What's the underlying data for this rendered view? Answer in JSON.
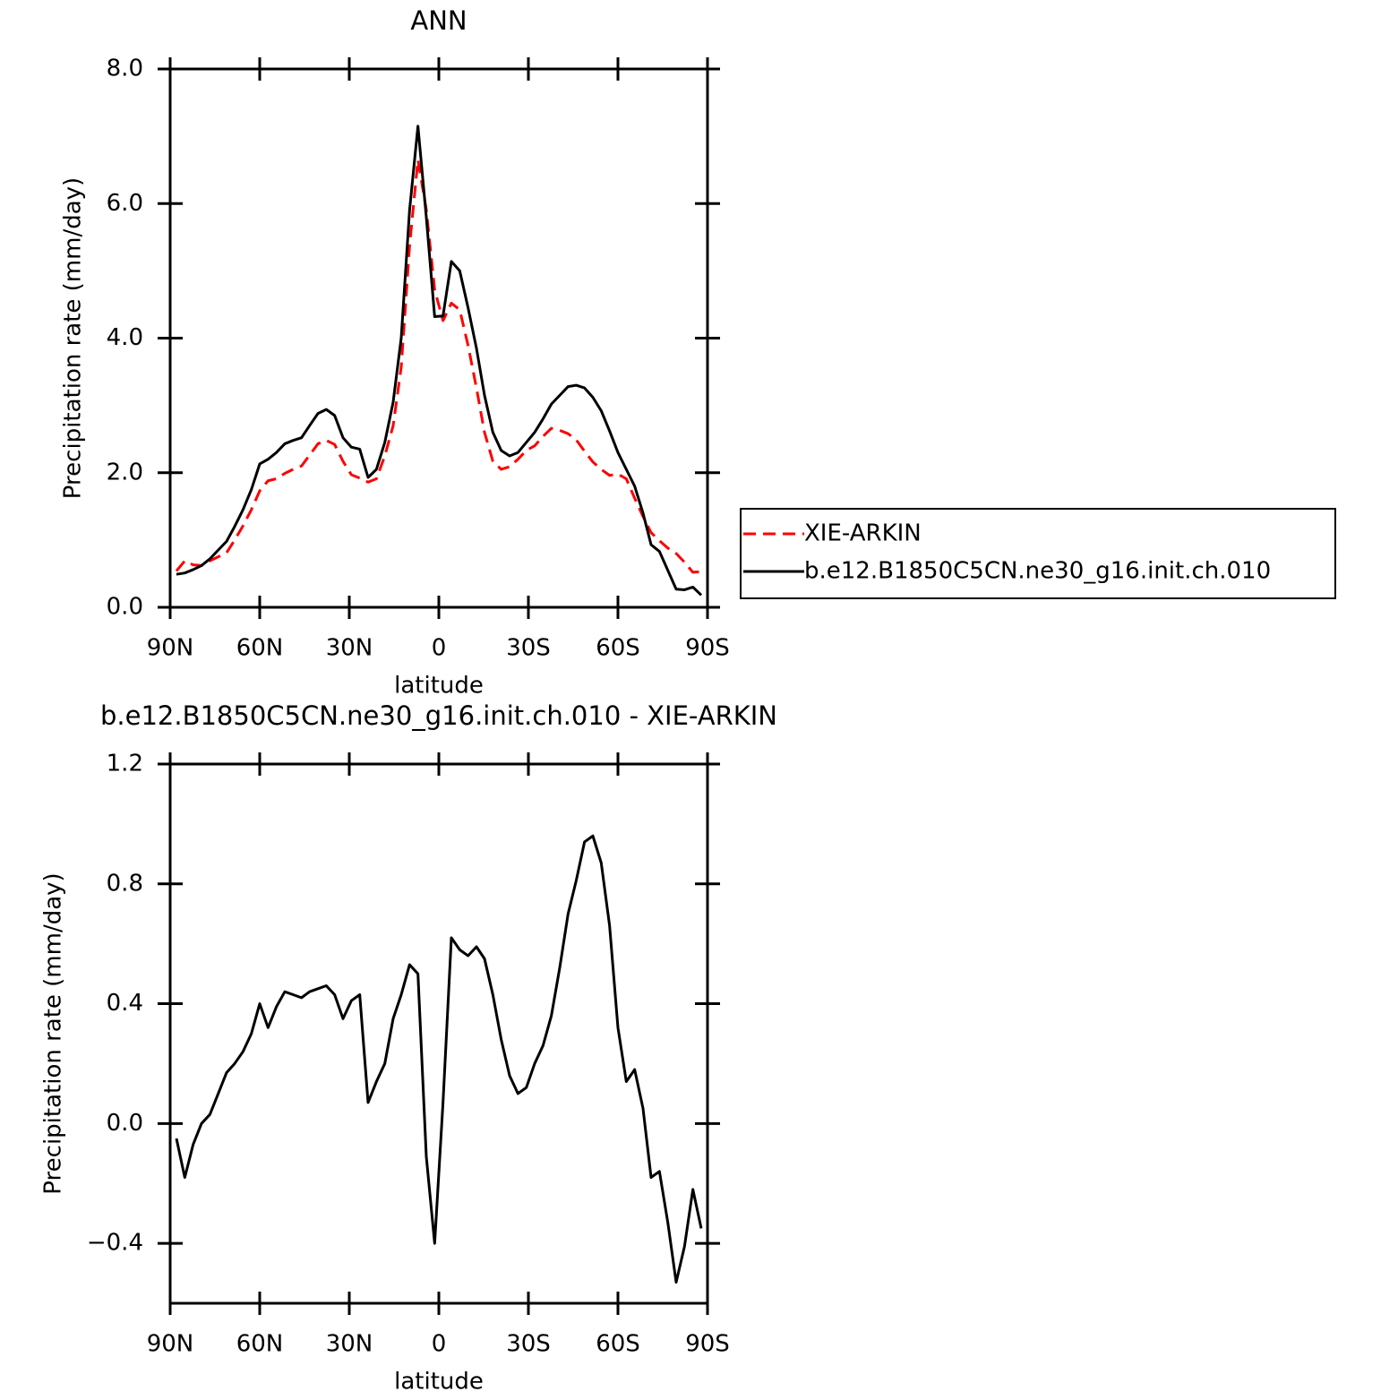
{
  "chart_data": [
    {
      "type": "line",
      "title": "ANN",
      "xlabel": "latitude",
      "ylabel": "Precipitation rate (mm/day)",
      "x": [
        87.9,
        85.1,
        82.3,
        79.5,
        76.7,
        73.9,
        71.1,
        68.4,
        65.6,
        62.8,
        60.0,
        57.2,
        54.4,
        51.6,
        48.8,
        46.0,
        43.3,
        40.5,
        37.7,
        34.9,
        32.1,
        29.3,
        26.5,
        23.7,
        20.9,
        18.1,
        15.3,
        12.6,
        9.8,
        7.0,
        4.2,
        1.4,
        -1.4,
        -4.2,
        -7.0,
        -9.8,
        -12.6,
        -15.3,
        -18.1,
        -20.9,
        -23.7,
        -26.5,
        -29.3,
        -32.1,
        -34.9,
        -37.7,
        -40.5,
        -43.3,
        -46.0,
        -48.8,
        -51.6,
        -54.4,
        -57.2,
        -60.0,
        -62.8,
        -65.6,
        -68.4,
        -71.1,
        -73.9,
        -76.7,
        -79.5,
        -82.3,
        -85.1,
        -87.9
      ],
      "xlim": [
        90,
        -90
      ],
      "xticks": [
        {
          "value": 90,
          "label": "90N"
        },
        {
          "value": 60,
          "label": "60N"
        },
        {
          "value": 30,
          "label": "30N"
        },
        0,
        {
          "value": -30,
          "label": "30S"
        },
        {
          "value": -60,
          "label": "60S"
        },
        {
          "value": -90,
          "label": "90S"
        }
      ],
      "ylim": [
        0,
        8
      ],
      "yticks": [
        {
          "value": 0,
          "label": "0.0"
        },
        {
          "value": 2,
          "label": "2.0"
        },
        {
          "value": 4,
          "label": "4.0"
        },
        {
          "value": 6,
          "label": "6.0"
        },
        {
          "value": 8,
          "label": "8.0"
        }
      ],
      "legend": "right",
      "series": [
        {
          "name": "XIE-ARKIN",
          "color": "#ff0000",
          "linestyle": "dashed",
          "values": [
            0.54,
            0.69,
            0.63,
            0.62,
            0.69,
            0.75,
            0.81,
            1.0,
            1.21,
            1.45,
            1.73,
            1.88,
            1.91,
            1.99,
            2.05,
            2.1,
            2.26,
            2.43,
            2.48,
            2.42,
            2.17,
            1.97,
            1.92,
            1.86,
            1.91,
            2.25,
            2.7,
            3.57,
            5.37,
            6.65,
            5.91,
            4.72,
            4.26,
            4.52,
            4.42,
            3.89,
            3.26,
            2.6,
            2.17,
            2.05,
            2.09,
            2.2,
            2.33,
            2.4,
            2.54,
            2.66,
            2.63,
            2.58,
            2.49,
            2.32,
            2.16,
            2.05,
            1.96,
            1.98,
            1.91,
            1.62,
            1.35,
            1.11,
            0.99,
            0.88,
            0.8,
            0.67,
            0.52,
            0.53
          ]
        },
        {
          "name": "b.e12.B1850C5CN.ne30_g16.init.ch.010",
          "color": "#000000",
          "linestyle": "solid",
          "values": [
            0.49,
            0.51,
            0.56,
            0.62,
            0.72,
            0.85,
            0.98,
            1.2,
            1.45,
            1.75,
            2.13,
            2.2,
            2.3,
            2.43,
            2.48,
            2.52,
            2.7,
            2.88,
            2.94,
            2.85,
            2.52,
            2.38,
            2.35,
            1.93,
            2.05,
            2.45,
            3.05,
            4.0,
            5.9,
            7.15,
            5.8,
            4.32,
            4.33,
            5.14,
            5.0,
            4.45,
            3.85,
            3.15,
            2.6,
            2.33,
            2.25,
            2.3,
            2.45,
            2.6,
            2.8,
            3.02,
            3.15,
            3.28,
            3.3,
            3.26,
            3.12,
            2.92,
            2.62,
            2.3,
            2.05,
            1.8,
            1.4,
            0.93,
            0.83,
            0.55,
            0.27,
            0.26,
            0.3,
            0.18
          ]
        }
      ]
    },
    {
      "type": "line",
      "title": "b.e12.B1850C5CN.ne30_g16.init.ch.010 - XIE-ARKIN",
      "xlabel": "latitude",
      "ylabel": "Precipitation rate (mm/day)",
      "x": [
        87.9,
        85.1,
        82.3,
        79.5,
        76.7,
        73.9,
        71.1,
        68.4,
        65.6,
        62.8,
        60.0,
        57.2,
        54.4,
        51.6,
        48.8,
        46.0,
        43.3,
        40.5,
        37.7,
        34.9,
        32.1,
        29.3,
        26.5,
        23.7,
        20.9,
        18.1,
        15.3,
        12.6,
        9.8,
        7.0,
        4.2,
        1.4,
        -1.4,
        -4.2,
        -7.0,
        -9.8,
        -12.6,
        -15.3,
        -18.1,
        -20.9,
        -23.7,
        -26.5,
        -29.3,
        -32.1,
        -34.9,
        -37.7,
        -40.5,
        -43.3,
        -46.0,
        -48.8,
        -51.6,
        -54.4,
        -57.2,
        -60.0,
        -62.8,
        -65.6,
        -68.4,
        -71.1,
        -73.9,
        -76.7,
        -79.5,
        -82.3,
        -85.1,
        -87.9
      ],
      "xlim": [
        90,
        -90
      ],
      "xticks": [
        {
          "value": 90,
          "label": "90N"
        },
        {
          "value": 60,
          "label": "60N"
        },
        {
          "value": 30,
          "label": "30N"
        },
        0,
        {
          "value": -30,
          "label": "30S"
        },
        {
          "value": -60,
          "label": "60S"
        },
        {
          "value": -90,
          "label": "90S"
        }
      ],
      "ylim": [
        -0.6,
        1.2
      ],
      "yticks": [
        {
          "value": -0.4,
          "label": "−0.4"
        },
        {
          "value": 0,
          "label": "0.0"
        },
        0.4,
        0.8,
        1.2
      ],
      "color": "#000000",
      "values": [
        -0.05,
        -0.18,
        -0.07,
        0.0,
        0.03,
        0.1,
        0.17,
        0.2,
        0.24,
        0.3,
        0.4,
        0.32,
        0.39,
        0.44,
        0.43,
        0.42,
        0.44,
        0.45,
        0.46,
        0.43,
        0.35,
        0.41,
        0.43,
        0.07,
        0.14,
        0.2,
        0.35,
        0.43,
        0.53,
        0.5,
        -0.11,
        -0.4,
        0.07,
        0.62,
        0.58,
        0.56,
        0.59,
        0.55,
        0.43,
        0.28,
        0.16,
        0.1,
        0.12,
        0.2,
        0.26,
        0.36,
        0.52,
        0.7,
        0.81,
        0.94,
        0.96,
        0.87,
        0.66,
        0.32,
        0.14,
        0.18,
        0.05,
        -0.18,
        -0.16,
        -0.33,
        -0.53,
        -0.41,
        -0.22,
        -0.35
      ]
    }
  ]
}
